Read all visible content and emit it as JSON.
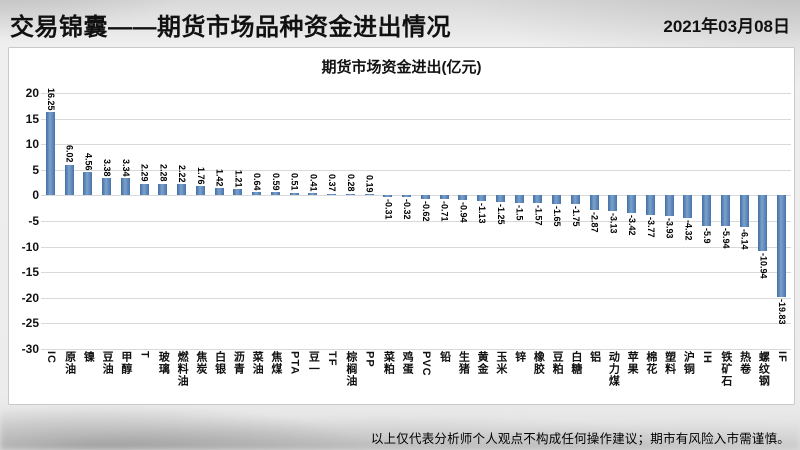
{
  "header": {
    "title": "交易锦囊——期货市场品种资金进出情况",
    "date": "2021年03月08日"
  },
  "chart_data": {
    "type": "bar",
    "title": "期货市场资金进出(亿元)",
    "categories": [
      "IC",
      "原油",
      "镍",
      "豆油",
      "甲醇",
      "T",
      "玻璃",
      "燃料油",
      "焦炭",
      "白银",
      "沥青",
      "菜油",
      "焦煤",
      "PTA",
      "豆一",
      "TF",
      "棕榈油",
      "PP",
      "菜粕",
      "鸡蛋",
      "PVC",
      "铅",
      "生猪",
      "黄金",
      "玉米",
      "锌",
      "橡胶",
      "豆粕",
      "白糖",
      "铝",
      "动力煤",
      "苹果",
      "棉花",
      "塑料",
      "沪铜",
      "IH",
      "铁矿石",
      "热卷",
      "螺纹钢",
      "IF"
    ],
    "values": [
      16.25,
      6.02,
      4.56,
      3.38,
      3.34,
      2.29,
      2.28,
      2.22,
      1.76,
      1.42,
      1.21,
      0.64,
      0.59,
      0.51,
      0.41,
      0.37,
      0.28,
      0.19,
      -0.31,
      -0.32,
      -0.62,
      -0.71,
      -0.94,
      -1.13,
      -1.25,
      -1.5,
      -1.57,
      -1.65,
      -1.75,
      -2.87,
      -3.13,
      -3.42,
      -3.77,
      -3.93,
      -4.32,
      -5.9,
      -5.94,
      -6.14,
      -10.94,
      -19.83
    ],
    "xlabel": "",
    "ylabel": "",
    "ylim": [
      -30,
      20
    ],
    "ytick_step": 5,
    "grid": true,
    "legend": "none",
    "bar_color": "#4f81bd",
    "gridline_color": "#d9d9d9"
  },
  "footer": {
    "disclaimer": "以上仅代表分析师个人观点不构成任何操作建议；期市有风险入市需谨慎。"
  }
}
